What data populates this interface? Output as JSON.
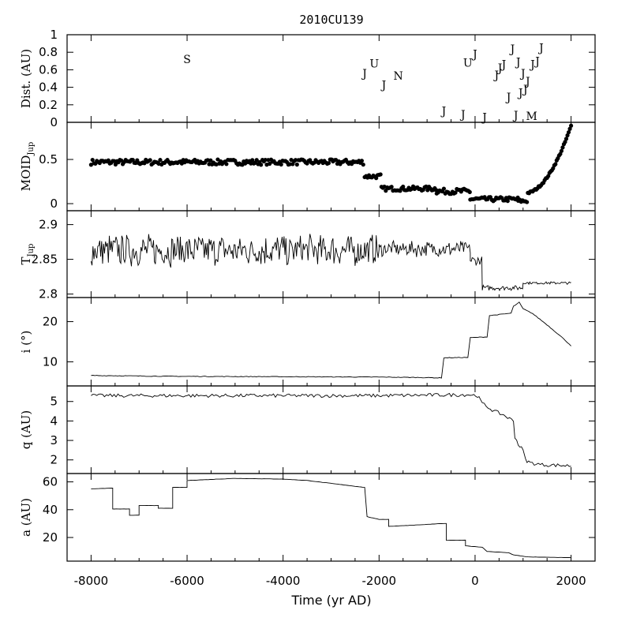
{
  "chart_data": {
    "type": "line",
    "title": "2010CU139",
    "xlabel": "Time (yr AD)",
    "xlim": [
      -8500,
      2500
    ],
    "xticks": [
      -8000,
      -6000,
      -4000,
      -2000,
      0,
      2000
    ],
    "xtick_labels": [
      "-8000",
      "-6000",
      "-4000",
      "-2000",
      "0",
      "2000"
    ],
    "panels": [
      {
        "id": "dist",
        "ylabel": "Dist. (AU)",
        "ylim": [
          0,
          1
        ],
        "yticks": [
          0,
          0.2,
          0.4,
          0.6,
          0.8,
          1
        ],
        "ytick_labels": [
          "0",
          "0.2",
          "0.4",
          "0.6",
          "0.8",
          "1"
        ],
        "encounters": [
          {
            "t": -6000,
            "d": 0.72,
            "label": "S"
          },
          {
            "t": -2300,
            "d": 0.56,
            "label": "J"
          },
          {
            "t": -2100,
            "d": 0.67,
            "label": "U"
          },
          {
            "t": -1900,
            "d": 0.43,
            "label": "J"
          },
          {
            "t": -1600,
            "d": 0.53,
            "label": "N"
          },
          {
            "t": -650,
            "d": 0.13,
            "label": "J"
          },
          {
            "t": -250,
            "d": 0.09,
            "label": "J"
          },
          {
            "t": -150,
            "d": 0.68,
            "label": "U"
          },
          {
            "t": 0,
            "d": 0.78,
            "label": "J"
          },
          {
            "t": 200,
            "d": 0.06,
            "label": "J"
          },
          {
            "t": 450,
            "d": 0.54,
            "label": "J"
          },
          {
            "t": 520,
            "d": 0.62,
            "label": "J"
          },
          {
            "t": 600,
            "d": 0.66,
            "label": "J"
          },
          {
            "t": 700,
            "d": 0.29,
            "label": "J"
          },
          {
            "t": 780,
            "d": 0.84,
            "label": "J"
          },
          {
            "t": 850,
            "d": 0.08,
            "label": "J"
          },
          {
            "t": 900,
            "d": 0.69,
            "label": "J"
          },
          {
            "t": 950,
            "d": 0.34,
            "label": "J"
          },
          {
            "t": 1000,
            "d": 0.56,
            "label": "J"
          },
          {
            "t": 1050,
            "d": 0.38,
            "label": "J"
          },
          {
            "t": 1100,
            "d": 0.47,
            "label": "J"
          },
          {
            "t": 1180,
            "d": 0.07,
            "label": "M"
          },
          {
            "t": 1200,
            "d": 0.66,
            "label": "J"
          },
          {
            "t": 1300,
            "d": 0.7,
            "label": "J"
          },
          {
            "t": 1380,
            "d": 0.85,
            "label": "J"
          }
        ]
      },
      {
        "id": "moid",
        "ylabel": "MOID",
        "ylabel_sub": "Jup",
        "ylim": [
          -0.08,
          0.92
        ],
        "yticks": [
          0,
          0.5
        ],
        "ytick_labels": [
          "0",
          "0.5"
        ],
        "style": "points",
        "segments": [
          {
            "t0": -8000,
            "t1": -2300,
            "mean": 0.47,
            "amp": 0.03
          },
          {
            "t0": -2300,
            "t1": -1950,
            "mean": 0.31,
            "amp": 0.025
          },
          {
            "t0": -1950,
            "t1": -800,
            "mean": 0.17,
            "amp": 0.025
          },
          {
            "t0": -800,
            "t1": -100,
            "mean": 0.14,
            "amp": 0.03
          },
          {
            "t0": -100,
            "t1": 900,
            "mean": 0.05,
            "amp": 0.025
          },
          {
            "t0": 900,
            "t1": 1100,
            "mean": 0.03,
            "amp": 0.02
          }
        ],
        "rise": {
          "t0": 1100,
          "t1": 2000,
          "v0": 0.12,
          "v1": 0.88
        }
      },
      {
        "id": "tjup",
        "ylabel": "T",
        "ylabel_sub": "Jup",
        "ylim": [
          2.795,
          2.92
        ],
        "yticks": [
          2.8,
          2.85,
          2.9
        ],
        "ytick_labels": [
          "2.8",
          "2.85",
          "2.9"
        ],
        "style": "line",
        "segments": [
          {
            "t0": -8000,
            "t1": -2000,
            "mean": 2.863,
            "amp": 0.025
          },
          {
            "t0": -2000,
            "t1": -100,
            "mean": 2.865,
            "amp": 0.012
          },
          {
            "t0": -100,
            "t1": 150,
            "mean": 2.848,
            "amp": 0.008
          },
          {
            "t0": 150,
            "t1": 1000,
            "mean": 2.809,
            "amp": 0.004
          },
          {
            "t0": 1000,
            "t1": 2000,
            "mean": 2.816,
            "amp": 0.002
          }
        ]
      },
      {
        "id": "incl",
        "ylabel": "i (°)",
        "ylim": [
          4,
          26
        ],
        "yticks": [
          10,
          20
        ],
        "ytick_labels": [
          "10",
          "20"
        ],
        "style": "line",
        "points": [
          [
            -8000,
            6.6
          ],
          [
            -6500,
            6.4
          ],
          [
            -4000,
            6.3
          ],
          [
            -2000,
            6.2
          ],
          [
            -1200,
            6.1
          ],
          [
            -700,
            6.0
          ],
          [
            -650,
            11.0
          ],
          [
            -150,
            11.1
          ],
          [
            -100,
            16.0
          ],
          [
            250,
            16.2
          ],
          [
            300,
            21.5
          ],
          [
            750,
            22.1
          ],
          [
            800,
            23.8
          ],
          [
            920,
            24.8
          ],
          [
            1000,
            23.2
          ],
          [
            1200,
            22.0
          ],
          [
            1500,
            19.2
          ],
          [
            1800,
            16.2
          ],
          [
            2000,
            14.0
          ]
        ]
      },
      {
        "id": "q",
        "ylabel": "q (AU)",
        "ylim": [
          1.3,
          5.8
        ],
        "yticks": [
          2,
          3,
          4,
          5
        ],
        "ytick_labels": [
          "2",
          "3",
          "4",
          "5"
        ],
        "style": "line",
        "points": [
          [
            -8000,
            5.3
          ],
          [
            -2000,
            5.3
          ],
          [
            -100,
            5.35
          ],
          [
            50,
            5.3
          ],
          [
            150,
            4.9
          ],
          [
            400,
            4.5
          ],
          [
            600,
            4.3
          ],
          [
            800,
            4.0
          ],
          [
            830,
            3.2
          ],
          [
            900,
            2.8
          ],
          [
            1000,
            2.5
          ],
          [
            1050,
            2.0
          ],
          [
            1150,
            1.85
          ],
          [
            1400,
            1.75
          ],
          [
            2000,
            1.7
          ]
        ]
      },
      {
        "id": "a",
        "ylabel": "a (AU)",
        "ylim": [
          3,
          66
        ],
        "yticks": [
          20,
          40,
          60
        ],
        "ytick_labels": [
          "20",
          "40",
          "60"
        ],
        "style": "line",
        "points": [
          [
            -8000,
            55
          ],
          [
            -7550,
            55.5
          ],
          [
            -7550,
            40.5
          ],
          [
            -7200,
            40.5
          ],
          [
            -7200,
            36
          ],
          [
            -7000,
            36
          ],
          [
            -7000,
            43
          ],
          [
            -6600,
            43
          ],
          [
            -6600,
            41
          ],
          [
            -6300,
            41
          ],
          [
            -6300,
            56
          ],
          [
            -6000,
            56
          ],
          [
            -6000,
            61
          ],
          [
            -5000,
            62.5
          ],
          [
            -4000,
            62
          ],
          [
            -3500,
            61
          ],
          [
            -2300,
            56
          ],
          [
            -2250,
            35
          ],
          [
            -2000,
            33
          ],
          [
            -1800,
            33
          ],
          [
            -1800,
            28
          ],
          [
            -1200,
            29
          ],
          [
            -700,
            30
          ],
          [
            -600,
            30
          ],
          [
            -600,
            18
          ],
          [
            -200,
            18
          ],
          [
            -200,
            14
          ],
          [
            150,
            13
          ],
          [
            250,
            10
          ],
          [
            700,
            9
          ],
          [
            800,
            7.5
          ],
          [
            1100,
            6
          ],
          [
            2000,
            5.5
          ]
        ]
      }
    ]
  }
}
